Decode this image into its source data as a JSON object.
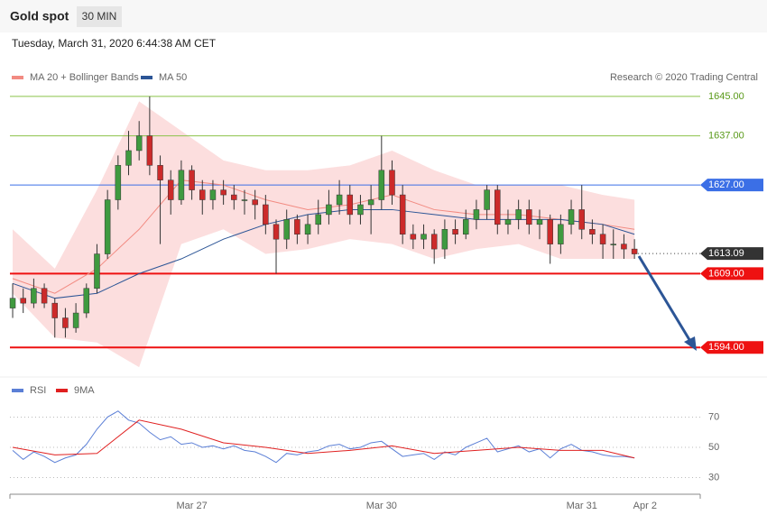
{
  "header": {
    "title": "Gold spot",
    "timeframe": "30 MIN",
    "date": "Tuesday, March 31, 2020 6:44:38 AM CET"
  },
  "chart_data": [
    {
      "type": "candlestick",
      "source": "Research © 2020 Trading Central",
      "up_color": "#3f9a3f",
      "down_color": "#cc2a2a",
      "xlim": [
        -0.26,
        65.24
      ],
      "ylim": [
        1588,
        1647
      ],
      "xticks": [
        {
          "value": 17,
          "label": "Mar 27"
        },
        {
          "value": 35,
          "label": "Mar 30"
        },
        {
          "value": 54,
          "label": "Mar 31"
        },
        {
          "value": 60,
          "label": "Apr 2"
        }
      ],
      "candles": [
        [
          1602,
          1607,
          1600,
          1604
        ],
        [
          1604,
          1606,
          1601,
          1603
        ],
        [
          1603,
          1608,
          1602,
          1606
        ],
        [
          1606,
          1607,
          1602,
          1603
        ],
        [
          1603,
          1604,
          1596,
          1600
        ],
        [
          1600,
          1602,
          1596,
          1598
        ],
        [
          1598,
          1603,
          1597,
          1601
        ],
        [
          1601,
          1607,
          1600,
          1606
        ],
        [
          1606,
          1615,
          1605,
          1613
        ],
        [
          1613,
          1626,
          1612,
          1624
        ],
        [
          1624,
          1633,
          1622,
          1631
        ],
        [
          1631,
          1638,
          1629,
          1634
        ],
        [
          1634,
          1640,
          1632,
          1637
        ],
        [
          1637,
          1645,
          1629,
          1631
        ],
        [
          1631,
          1633,
          1615,
          1628
        ],
        [
          1628,
          1630,
          1621,
          1624
        ],
        [
          1624,
          1632,
          1623,
          1630
        ],
        [
          1630,
          1631,
          1624,
          1626
        ],
        [
          1626,
          1628,
          1621,
          1624
        ],
        [
          1624,
          1628,
          1622,
          1626
        ],
        [
          1626,
          1628,
          1623,
          1625
        ],
        [
          1625,
          1627,
          1622,
          1624
        ],
        [
          1624,
          1626,
          1621,
          1624
        ],
        [
          1624,
          1626,
          1620,
          1623
        ],
        [
          1623,
          1625,
          1617,
          1619
        ],
        [
          1619,
          1620,
          1609,
          1616
        ],
        [
          1616,
          1622,
          1614,
          1620
        ],
        [
          1620,
          1621,
          1615,
          1617
        ],
        [
          1617,
          1621,
          1615,
          1619
        ],
        [
          1619,
          1624,
          1617,
          1621
        ],
        [
          1621,
          1626,
          1619,
          1623
        ],
        [
          1623,
          1628,
          1621,
          1625
        ],
        [
          1625,
          1627,
          1619,
          1621
        ],
        [
          1621,
          1625,
          1619,
          1623
        ],
        [
          1623,
          1627,
          1617,
          1624
        ],
        [
          1624,
          1637,
          1622,
          1630
        ],
        [
          1630,
          1632,
          1623,
          1625
        ],
        [
          1625,
          1627,
          1615,
          1617
        ],
        [
          1617,
          1619,
          1614,
          1616
        ],
        [
          1616,
          1619,
          1614,
          1617
        ],
        [
          1617,
          1618,
          1611,
          1614
        ],
        [
          1614,
          1620,
          1612,
          1618
        ],
        [
          1618,
          1620,
          1615,
          1617
        ],
        [
          1617,
          1622,
          1616,
          1620
        ],
        [
          1620,
          1624,
          1618,
          1622
        ],
        [
          1622,
          1627,
          1620,
          1626
        ],
        [
          1626,
          1627,
          1617,
          1619
        ],
        [
          1619,
          1622,
          1617,
          1620
        ],
        [
          1620,
          1624,
          1618,
          1622
        ],
        [
          1622,
          1624,
          1617,
          1619
        ],
        [
          1619,
          1622,
          1616,
          1620
        ],
        [
          1620,
          1621,
          1611,
          1615
        ],
        [
          1615,
          1621,
          1613,
          1619
        ],
        [
          1619,
          1624,
          1617,
          1622
        ],
        [
          1622,
          1627,
          1616,
          1618
        ],
        [
          1618,
          1620,
          1615,
          1617
        ],
        [
          1617,
          1619,
          1612,
          1615
        ],
        [
          1615,
          1618,
          1612,
          1615
        ],
        [
          1615,
          1617,
          1612,
          1614
        ],
        [
          1614,
          1616,
          1612,
          1613
        ]
      ],
      "bands": {
        "color": "#fbd6d6",
        "x": [
          0,
          4,
          8,
          12,
          16,
          20,
          24,
          28,
          32,
          36,
          40,
          44,
          48,
          52,
          56,
          59
        ],
        "upper": [
          1618,
          1610,
          1626,
          1644,
          1638,
          1632,
          1630,
          1630,
          1631,
          1634,
          1630,
          1627,
          1627,
          1627,
          1625,
          1624
        ],
        "lower": [
          1605,
          1596,
          1595,
          1590,
          1615,
          1618,
          1613,
          1614,
          1616,
          1615,
          1612,
          1614,
          1615,
          1612,
          1612,
          1612
        ]
      },
      "overlays": [
        {
          "name": "MA 20 + Bollinger Bands",
          "color": "#f28b82",
          "x": [
            0,
            4,
            8,
            12,
            16,
            20,
            24,
            28,
            32,
            36,
            40,
            44,
            48,
            52,
            56,
            59
          ],
          "values": [
            1608,
            1605,
            1610,
            1618,
            1628,
            1627,
            1624,
            1622,
            1623,
            1625,
            1622,
            1621,
            1621,
            1620,
            1619,
            1618
          ]
        },
        {
          "name": "MA 50",
          "color": "#2c5596",
          "x": [
            0,
            4,
            8,
            12,
            16,
            20,
            24,
            28,
            32,
            36,
            40,
            44,
            48,
            52,
            56,
            59
          ],
          "values": [
            1607,
            1604,
            1605,
            1609,
            1612,
            1616,
            1619,
            1621,
            1622,
            1622,
            1621,
            1620,
            1620,
            1620,
            1619,
            1617
          ]
        }
      ],
      "levels": [
        {
          "value": 1645,
          "label": "1645.00",
          "color": "#8bc34a",
          "width": 1,
          "style": "solid",
          "tag": false
        },
        {
          "value": 1637,
          "label": "1637.00",
          "color": "#8bc34a",
          "width": 1,
          "style": "solid",
          "tag": false
        },
        {
          "value": 1627,
          "label": "1627.00",
          "color": "#3b6fe6",
          "width": 1,
          "style": "solid",
          "tag": true
        },
        {
          "value": 1613.09,
          "label": "1613.09",
          "color": "#333333",
          "width": 1,
          "style": "dotted",
          "tag": true
        },
        {
          "value": 1609,
          "label": "1609.00",
          "color": "#ee1111",
          "width": 2,
          "style": "solid",
          "tag": true
        },
        {
          "value": 1594,
          "label": "1594.00",
          "color": "#ee1111",
          "width": 2,
          "style": "solid",
          "tag": true
        }
      ]
    },
    {
      "type": "line",
      "ylim": [
        19,
        81
      ],
      "yticks": [
        30,
        50,
        70
      ],
      "xlim": [
        -0.26,
        65.24
      ],
      "series": [
        {
          "name": "RSI",
          "color": "#5b7fd6",
          "x": [
            0,
            1,
            2,
            3,
            4,
            5,
            6,
            7,
            8,
            9,
            10,
            11,
            12,
            13,
            14,
            15,
            16,
            17,
            18,
            19,
            20,
            21,
            22,
            23,
            24,
            25,
            26,
            27,
            28,
            29,
            30,
            31,
            32,
            33,
            34,
            35,
            36,
            37,
            38,
            39,
            40,
            41,
            42,
            43,
            44,
            45,
            46,
            47,
            48,
            49,
            50,
            51,
            52,
            53,
            54,
            55,
            56,
            57,
            58,
            59
          ],
          "values": [
            48,
            42,
            47,
            44,
            40,
            43,
            45,
            52,
            62,
            70,
            74,
            68,
            66,
            60,
            55,
            57,
            52,
            53,
            50,
            51,
            49,
            51,
            48,
            47,
            44,
            40,
            46,
            45,
            47,
            48,
            51,
            52,
            49,
            50,
            53,
            54,
            49,
            44,
            45,
            46,
            42,
            47,
            45,
            50,
            53,
            56,
            47,
            49,
            51,
            47,
            49,
            43,
            49,
            52,
            48,
            47,
            45,
            44,
            44,
            43
          ]
        },
        {
          "name": "9MA",
          "color": "#e02020",
          "x": [
            0,
            4,
            8,
            12,
            16,
            20,
            24,
            28,
            32,
            36,
            40,
            44,
            48,
            52,
            56,
            59
          ],
          "values": [
            50,
            45,
            46,
            68,
            62,
            53,
            50,
            46,
            48,
            51,
            46,
            48,
            50,
            48,
            48,
            43
          ]
        }
      ]
    }
  ]
}
